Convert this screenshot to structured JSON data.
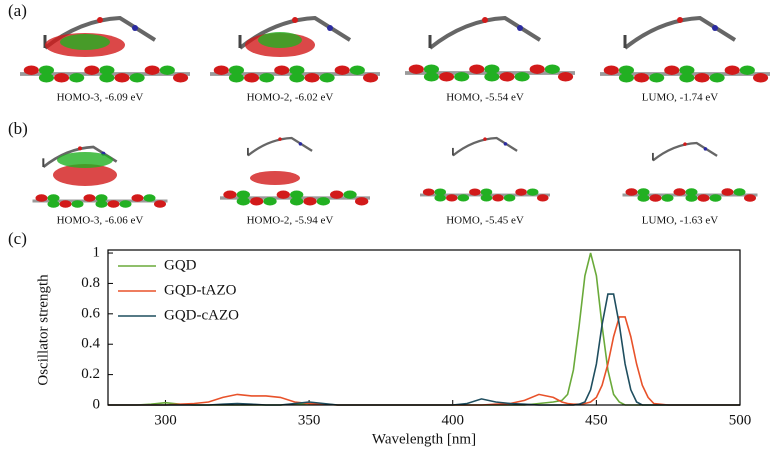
{
  "panels": [
    {
      "label": "(a)",
      "captions": [
        "HOMO-3, -6.09 eV",
        "HOMO-2, -6.02 eV",
        "HOMO, -5.54 eV",
        "LUMO, -1.74 eV"
      ]
    },
    {
      "label": "(b)",
      "captions": [
        "HOMO-3, -6.06 eV",
        "HOMO-2, -5.94 eV",
        "HOMO, -5.45 eV",
        "LUMO, -1.63 eV"
      ]
    }
  ],
  "chart_data": {
    "type": "line",
    "panel_label": "(c)",
    "x_label": "Wavelength [nm]",
    "y_label": "Oscillator strength",
    "x": [
      280,
      290,
      295,
      300,
      305,
      310,
      315,
      320,
      325,
      330,
      335,
      340,
      345,
      350,
      355,
      360,
      370,
      380,
      390,
      400,
      405,
      410,
      415,
      420,
      425,
      430,
      435,
      438,
      440,
      442,
      444,
      446,
      448,
      450,
      452,
      454,
      456,
      458,
      460,
      462,
      464,
      466,
      468,
      470,
      475,
      480,
      490,
      500
    ],
    "series": [
      {
        "name": "GQD",
        "color": "#6aaa3a",
        "values": [
          0,
          0,
          0.005,
          0.015,
          0.005,
          0,
          0,
          0,
          0,
          0,
          0,
          0,
          0.005,
          0.01,
          0.005,
          0,
          0,
          0,
          0,
          0,
          0,
          0,
          0,
          0,
          0,
          0.01,
          0.02,
          0.03,
          0.07,
          0.23,
          0.52,
          0.85,
          1.0,
          0.85,
          0.52,
          0.23,
          0.07,
          0.02,
          0,
          0,
          0,
          0,
          0,
          0,
          0,
          0,
          0,
          0
        ]
      },
      {
        "name": "GQD-tAZO",
        "color": "#e8522a",
        "values": [
          0,
          0,
          0,
          0,
          0.005,
          0.01,
          0.02,
          0.05,
          0.07,
          0.06,
          0.06,
          0.05,
          0.02,
          0.01,
          0.005,
          0,
          0,
          0,
          0,
          0,
          0,
          0,
          0.005,
          0.01,
          0.03,
          0.07,
          0.05,
          0.02,
          0.01,
          0.005,
          0.005,
          0.01,
          0.02,
          0.05,
          0.13,
          0.27,
          0.45,
          0.58,
          0.58,
          0.45,
          0.27,
          0.13,
          0.05,
          0.01,
          0,
          0,
          0,
          0
        ]
      },
      {
        "name": "GQD-cAZO",
        "color": "#1f4e5f",
        "values": [
          0,
          0,
          0,
          0,
          0,
          0,
          0,
          0.005,
          0.01,
          0.005,
          0,
          0,
          0.01,
          0.02,
          0.01,
          0,
          0,
          0,
          0,
          0,
          0.01,
          0.04,
          0.02,
          0.01,
          0.005,
          0,
          0,
          0,
          0,
          0,
          0.005,
          0.02,
          0.1,
          0.27,
          0.53,
          0.73,
          0.73,
          0.53,
          0.27,
          0.1,
          0.02,
          0,
          0,
          0,
          0,
          0,
          0,
          0
        ]
      }
    ],
    "xlim": [
      280,
      500
    ],
    "xticks": [
      300,
      350,
      400,
      450,
      500
    ],
    "ylim": [
      0,
      1.02
    ],
    "yticks": [
      0,
      0.2,
      0.4,
      0.6,
      0.8,
      1
    ],
    "legend": "upper-left"
  }
}
